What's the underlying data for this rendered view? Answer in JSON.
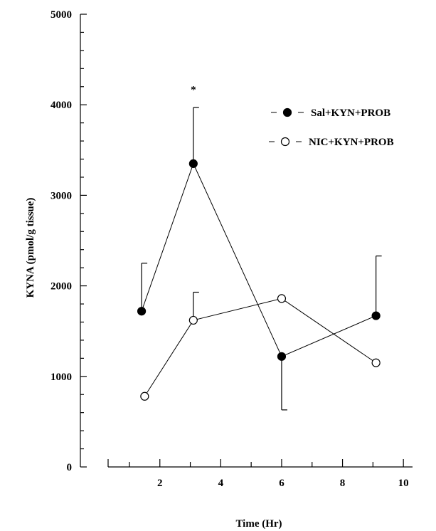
{
  "chart_data": {
    "type": "line",
    "title": "",
    "xlabel": "Time (Hr)",
    "ylabel": "KYNA (pmol/g tissue)",
    "xlim": [
      0.3,
      10.3
    ],
    "ylim": [
      0,
      5000
    ],
    "xticks": [
      2,
      4,
      6,
      8,
      10
    ],
    "yticks": [
      0,
      1000,
      2000,
      3000,
      4000,
      5000
    ],
    "grid": false,
    "legend_position": "top-right",
    "series": [
      {
        "name": "Sal+KYN+PROB",
        "marker": "filled-circle",
        "color": "#000000",
        "x": [
          1.4,
          3.1,
          6.0,
          9.1
        ],
        "y": [
          1720,
          3350,
          1220,
          1670
        ],
        "error": [
          {
            "dir": "up",
            "value": 530
          },
          {
            "dir": "up",
            "value": 620
          },
          {
            "dir": "down",
            "value": 590
          },
          {
            "dir": "up",
            "value": 660
          }
        ]
      },
      {
        "name": "NIC+KYN+PROB",
        "marker": "open-circle",
        "color": "#000000",
        "x": [
          1.5,
          3.1,
          6.0,
          9.1
        ],
        "y": [
          780,
          1620,
          1860,
          1150
        ],
        "error": [
          {
            "dir": "none",
            "value": 0
          },
          {
            "dir": "up",
            "value": 310
          },
          {
            "dir": "none",
            "value": 0
          },
          {
            "dir": "none",
            "value": 0
          }
        ]
      }
    ],
    "annotations": [
      {
        "text": "*",
        "x": 3.1,
        "y": 4180
      }
    ]
  }
}
